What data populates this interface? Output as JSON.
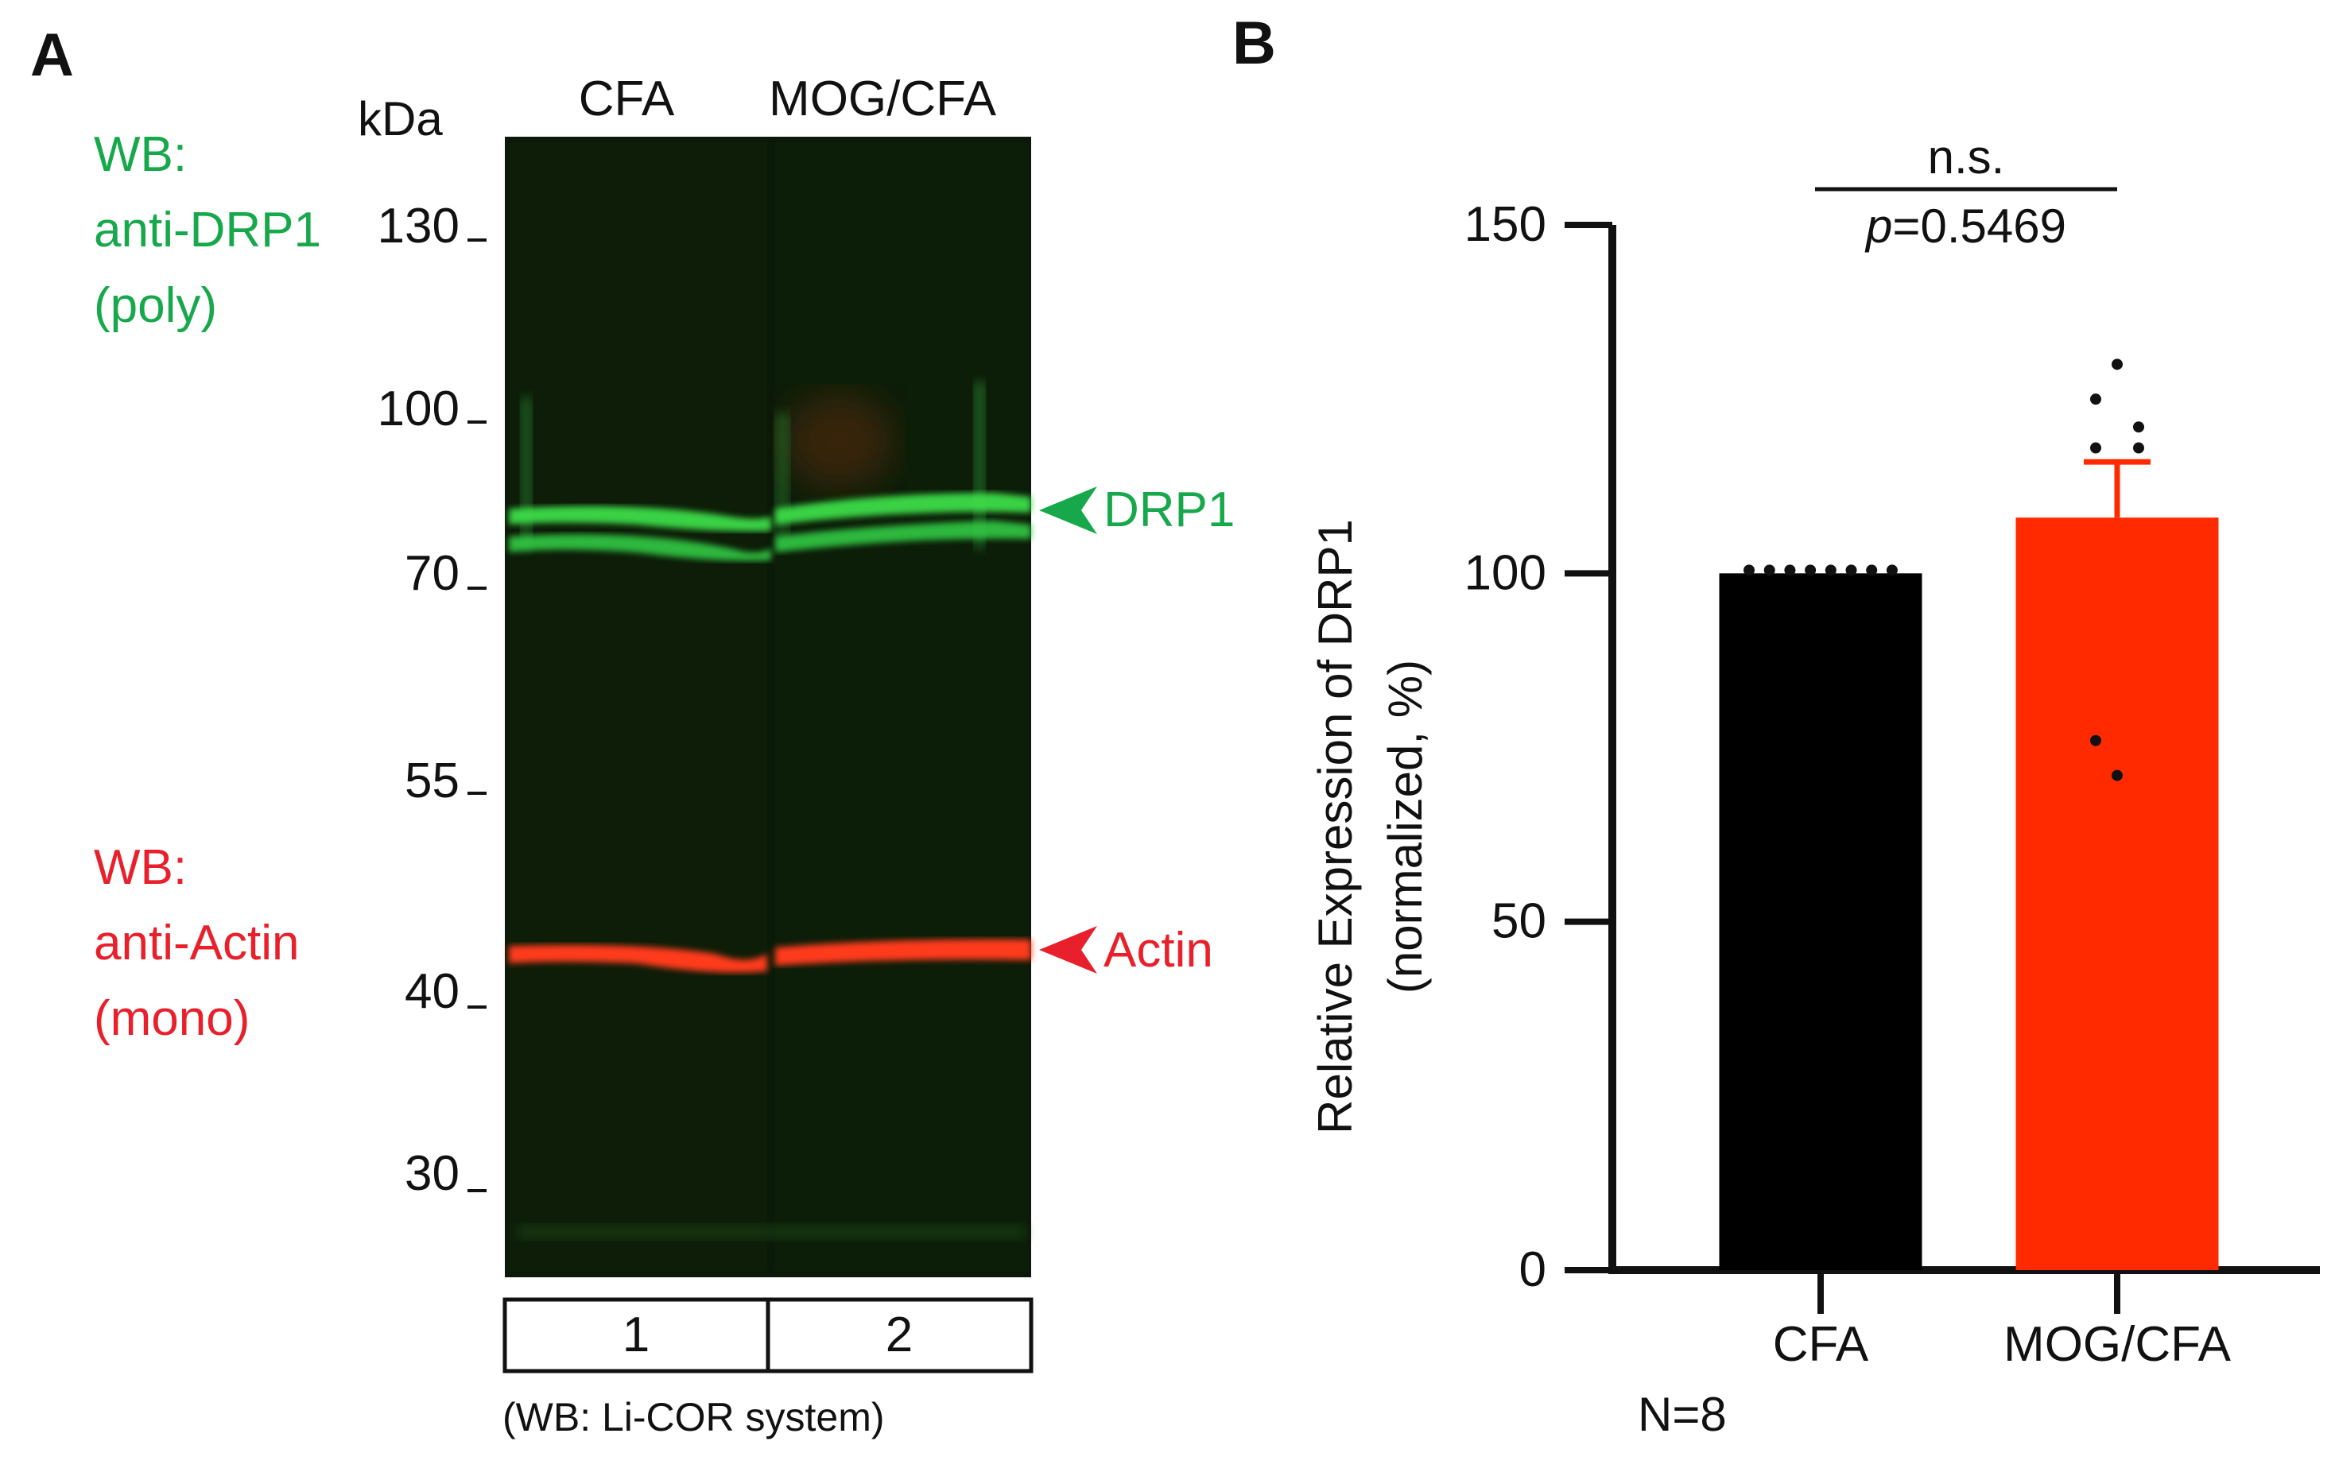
{
  "panel_a": {
    "panel_label": "A",
    "kda_label": "kDa",
    "lanes": [
      "CFA",
      "MOG/CFA"
    ],
    "lane_numbers": [
      "1",
      "2"
    ],
    "markers": [
      "130",
      "100",
      "70",
      "55",
      "40",
      "30"
    ],
    "drp1_label_lines": [
      "WB:",
      "anti-DRP1",
      "(poly)"
    ],
    "actin_label_lines": [
      "WB:",
      "anti-Actin",
      "(mono)"
    ],
    "drp1_arrow_label": "DRP1",
    "actin_arrow_label": "Actin",
    "system_note": "(WB: Li-COR system)",
    "colors": {
      "green": "#16a84b",
      "red": "#e8202b",
      "blot_bg": "#0b1a08"
    }
  },
  "panel_b": {
    "panel_label": "B",
    "significance": "n.s.",
    "p_label": "p",
    "p_value": "=0.5469",
    "n_label": "N=8",
    "colors": {
      "cfa": "#000000",
      "mog": "#ff2a00"
    }
  },
  "chart_data": {
    "type": "bar",
    "categories": [
      "CFA",
      "MOG/CFA"
    ],
    "values": [
      100,
      108
    ],
    "error": [
      0,
      8
    ],
    "points": [
      [
        100,
        100,
        100,
        100,
        100,
        100,
        100,
        100
      ],
      [
        130,
        125,
        121,
        118,
        118,
        76,
        71,
        108
      ]
    ],
    "ylabel_lines": [
      "Relative Expression of DRP1",
      "(normalized, %)"
    ],
    "ylim": [
      0,
      150
    ],
    "yticks": [
      "0",
      "50",
      "100",
      "150"
    ],
    "grid": false,
    "legend": "none"
  }
}
